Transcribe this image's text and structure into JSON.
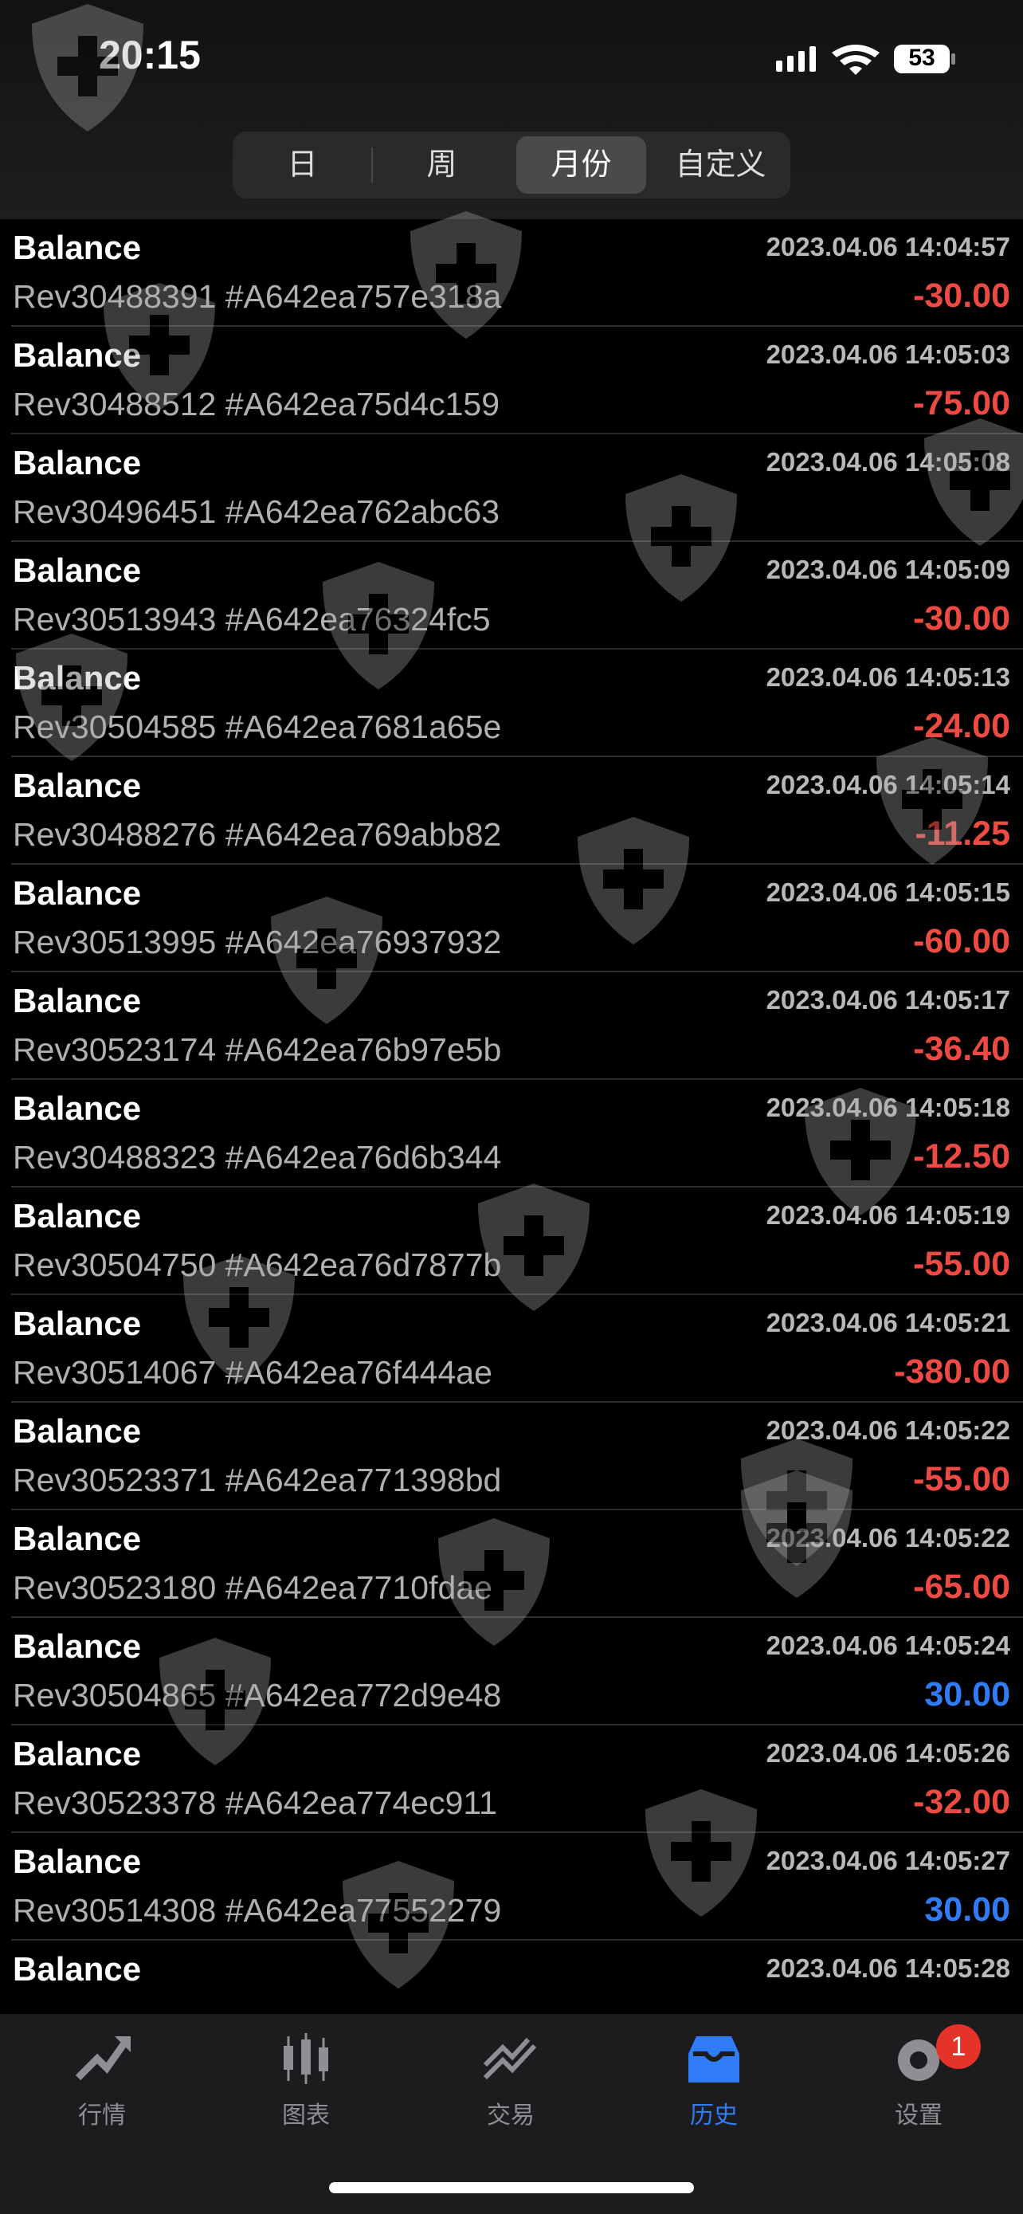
{
  "status_bar": {
    "time": "20:15",
    "battery": "53"
  },
  "tabs": [
    "日",
    "周",
    "月份",
    "自定义"
  ],
  "active_tab": 2,
  "rows": [
    {
      "title": "Balance",
      "time": "2023.04.06 14:04:57",
      "ref": "Rev30488391 #A642ea757e318a",
      "amount": "-30.00"
    },
    {
      "title": "Balance",
      "time": "2023.04.06 14:05:03",
      "ref": "Rev30488512 #A642ea75d4c159",
      "amount": "-75.00"
    },
    {
      "title": "Balance",
      "time": "2023.04.06 14:05:08",
      "ref": "Rev30496451 #A642ea762abc63"
    },
    {
      "title": "Balance",
      "time": "2023.04.06 14:05:09",
      "ref": "Rev30513943 #A642ea76324fc5",
      "amount": "-30.00"
    },
    {
      "title": "Balance",
      "time": "2023.04.06 14:05:13",
      "ref": "Rev30504585 #A642ea7681a65e",
      "amount": "-24.00"
    },
    {
      "title": "Balance",
      "time": "2023.04.06 14:05:14",
      "ref": "Rev30488276 #A642ea769abb82",
      "amount": "-11.25"
    },
    {
      "title": "Balance",
      "time": "2023.04.06 14:05:15",
      "ref": "Rev30513995 #A642ea76937932",
      "amount": "-60.00"
    },
    {
      "title": "Balance",
      "time": "2023.04.06 14:05:17",
      "ref": "Rev30523174 #A642ea76b97e5b",
      "amount": "-36.40"
    },
    {
      "title": "Balance",
      "time": "2023.04.06 14:05:18",
      "ref": "Rev30488323 #A642ea76d6b344",
      "amount": "-12.50"
    },
    {
      "title": "Balance",
      "time": "2023.04.06 14:05:19",
      "ref": "Rev30504750 #A642ea76d7877b",
      "amount": "-55.00"
    },
    {
      "title": "Balance",
      "time": "2023.04.06 14:05:21",
      "ref": "Rev30514067 #A642ea76f444ae",
      "amount": "-380.00"
    },
    {
      "title": "Balance",
      "time": "2023.04.06 14:05:22",
      "ref": "Rev30523371 #A642ea771398bd",
      "amount": "-55.00"
    },
    {
      "title": "Balance",
      "time": "2023.04.06 14:05:22",
      "ref": "Rev30523180 #A642ea7710fdae",
      "amount": "-65.00"
    },
    {
      "title": "Balance",
      "time": "2023.04.06 14:05:24",
      "ref": "Rev30504865 #A642ea772d9e48",
      "amount": "30.00"
    },
    {
      "title": "Balance",
      "time": "2023.04.06 14:05:26",
      "ref": "Rev30523378 #A642ea774ec911",
      "amount": "-32.00"
    },
    {
      "title": "Balance",
      "time": "2023.04.06 14:05:27",
      "ref": "Rev30514308 #A642ea77552279",
      "amount": "30.00"
    },
    {
      "title": "Balance",
      "time": "2023.04.06 14:05:28"
    }
  ],
  "nav": [
    "行情",
    "图表",
    "交易",
    "历史",
    "设置"
  ],
  "active_nav": 3,
  "settings_badge": "1"
}
